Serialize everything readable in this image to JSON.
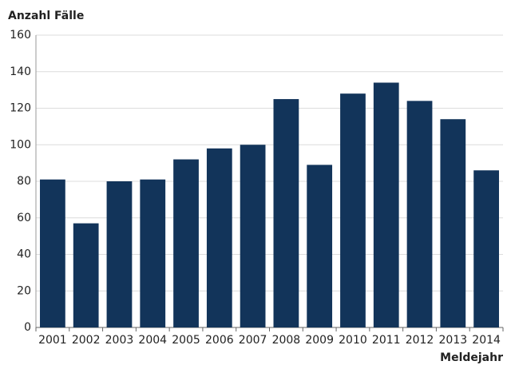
{
  "chart_data": {
    "type": "bar",
    "title": "Anzahl Fälle",
    "x_label": "Meldejahr",
    "categories": [
      "2001",
      "2002",
      "2003",
      "2004",
      "2005",
      "2006",
      "2007",
      "2008",
      "2009",
      "2010",
      "2011",
      "2012",
      "2013",
      "2014"
    ],
    "values": [
      81,
      57,
      80,
      81,
      92,
      98,
      100,
      125,
      89,
      128,
      134,
      124,
      114,
      86
    ],
    "color": "#12345a",
    "ylim": [
      0,
      160
    ],
    "yticks": [
      0,
      20,
      40,
      60,
      80,
      100,
      120,
      140,
      160
    ],
    "grid": true
  }
}
